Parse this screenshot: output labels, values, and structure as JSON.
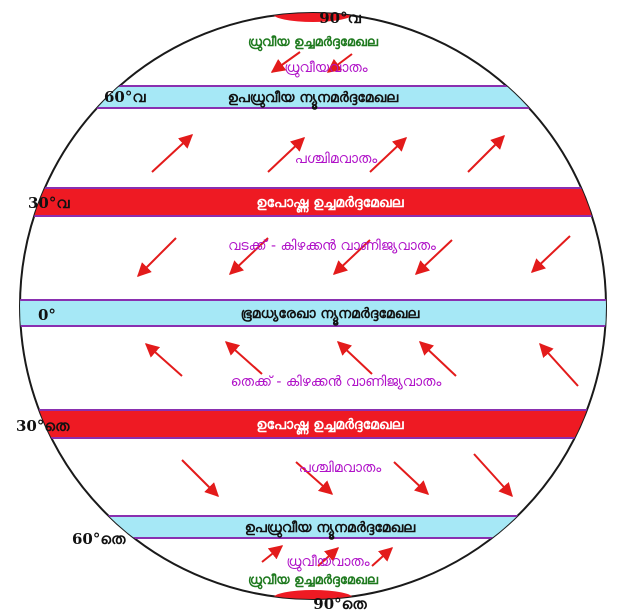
{
  "latitudes": {
    "n90": "90°വ",
    "n60": "60°വ",
    "n30": "30°വ",
    "eq": "0°",
    "s30": "30°തെ",
    "s60": "60°തെ",
    "s90": "90°തെ"
  },
  "belts": {
    "north_polar_high": "ധ്രുവീയ ഉച്ചമർദ്ദമേഖല",
    "north_subpolar_low": "ഉപധ്രുവീയ ന്യൂനമർദ്ദമേഖല",
    "north_subtropical_high": "ഉപോഷ്ണ ഉച്ചമർദ്ദമേഖല",
    "equatorial_low": "ഭൂമധ്യരേഖാ ന്യൂനമർദ്ദമേഖല",
    "south_subtropical_high": "ഉപോഷ്ണ ഉച്ചമർദ്ദമേഖല",
    "south_subpolar_low": "ഉപധ്രുവീയ ന്യൂനമർദ്ദമേഖല",
    "south_polar_high": "ധ്രുവീയ ഉച്ചമർദ്ദമേഖല"
  },
  "winds": {
    "north_polar_easterlies": "ധ്രുവീയവാതം",
    "north_westerlies": "പശ്ചിമവാതം",
    "northeast_trades": "വടക്ക് - കിഴക്കൻ വാണിജ്യവാതം",
    "southeast_trades": "തെക്ക് - കിഴക്കൻ വാണിജ്യവാതം",
    "south_westerlies": "പശ്ചിമവാതം",
    "south_polar_easterlies": "ധ്രുവീയവാതം"
  },
  "colors": {
    "low_pressure_band": "#a6e8f6",
    "high_pressure_band": "#ee1a23",
    "band_border": "#8a2fb0",
    "arrow": "#e31b1b",
    "wind_label": "#b012c8",
    "polar_label": "#1f7a1f",
    "globe_outline": "#1a1a1a"
  }
}
